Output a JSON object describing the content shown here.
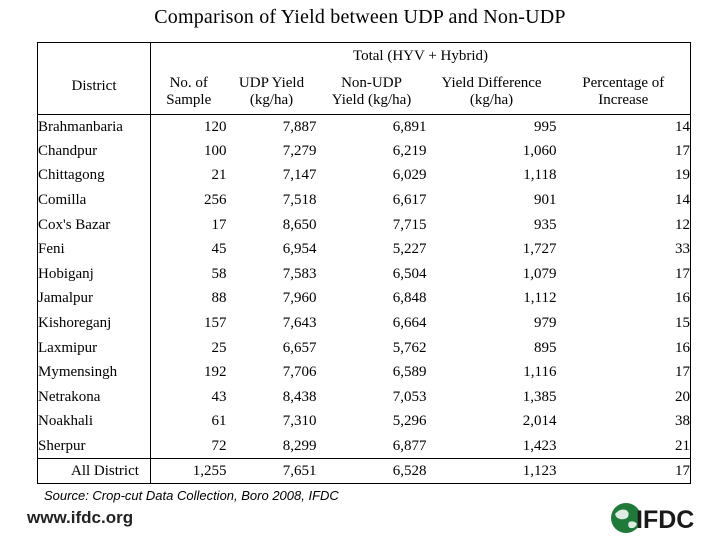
{
  "title": "Comparison of Yield between UDP and Non-UDP",
  "table": {
    "group_header": "Total (HYV + Hybrid)",
    "columns": {
      "district": "District",
      "samples_line1": "No. of",
      "samples_line2": "Sample",
      "udp_line1": "UDP Yield",
      "udp_line2": "(kg/ha)",
      "nonudp_line1": "Non-UDP",
      "nonudp_line2": "Yield (kg/ha)",
      "diff_line1": "Yield Difference",
      "diff_line2": "(kg/ha)",
      "pct_line1": "Percentage of",
      "pct_line2": "Increase"
    },
    "rows": [
      [
        "Brahmanbaria",
        "120",
        "7,887",
        "6,891",
        "995",
        "14"
      ],
      [
        "Chandpur",
        "100",
        "7,279",
        "6,219",
        "1,060",
        "17"
      ],
      [
        "Chittagong",
        "21",
        "7,147",
        "6,029",
        "1,118",
        "19"
      ],
      [
        "Comilla",
        "256",
        "7,518",
        "6,617",
        "901",
        "14"
      ],
      [
        "Cox's Bazar",
        "17",
        "8,650",
        "7,715",
        "935",
        "12"
      ],
      [
        "Feni",
        "45",
        "6,954",
        "5,227",
        "1,727",
        "33"
      ],
      [
        "Hobiganj",
        "58",
        "7,583",
        "6,504",
        "1,079",
        "17"
      ],
      [
        "Jamalpur",
        "88",
        "7,960",
        "6,848",
        "1,112",
        "16"
      ],
      [
        "Kishoreganj",
        "157",
        "7,643",
        "6,664",
        "979",
        "15"
      ],
      [
        "Laxmipur",
        "25",
        "6,657",
        "5,762",
        "895",
        "16"
      ],
      [
        "Mymensingh",
        "192",
        "7,706",
        "6,589",
        "1,116",
        "17"
      ],
      [
        "Netrakona",
        "43",
        "8,438",
        "7,053",
        "1,385",
        "20"
      ],
      [
        "Noakhali",
        "61",
        "7,310",
        "5,296",
        "2,014",
        "38"
      ],
      [
        "Sherpur",
        "72",
        "8,299",
        "6,877",
        "1,423",
        "21"
      ]
    ],
    "total": [
      "All District",
      "1,255",
      "7,651",
      "6,528",
      "1,123",
      "17"
    ]
  },
  "source_note": "Source:  Crop-cut Data Collection, Boro 2008, IFDC",
  "website": "www.ifdc.org",
  "logo_text": "IFDC",
  "colors": {
    "logo_green": "#1f7a3a",
    "logo_dark": "#1a1a1a"
  }
}
